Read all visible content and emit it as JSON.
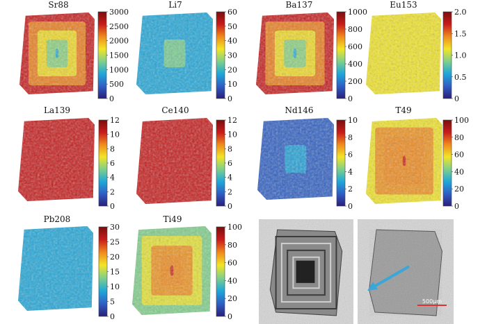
{
  "colormap": [
    "#2b1e7a",
    "#2f5fc4",
    "#1fa7d9",
    "#7fd08a",
    "#f2e526",
    "#f08a1c",
    "#c81b1b",
    "#7a0e0e"
  ],
  "colors": {
    "background": "#ffffff",
    "photo_gray": "#9b9b9b",
    "arrow": "#3aa7d8",
    "scale_bar": "#e03030"
  },
  "panels": [
    {
      "id": "sr88",
      "title": "Sr88",
      "ticks": [
        "3000",
        "2500",
        "2000",
        "1500",
        "1000",
        "500",
        "0"
      ],
      "core_level": 0.35,
      "rim_level": 0.85
    },
    {
      "id": "li7",
      "title": "Li7",
      "ticks": [
        "60",
        "50",
        "40",
        "30",
        "20",
        "10",
        "0"
      ],
      "core_level": 0.38,
      "rim_level": 0.32
    },
    {
      "id": "ba137",
      "title": "Ba137",
      "ticks": [
        "1000",
        "800",
        "600",
        "400",
        "200",
        "0"
      ],
      "core_level": 0.34,
      "rim_level": 0.88
    },
    {
      "id": "eu153",
      "title": "Eu153",
      "ticks": [
        "2.0",
        "1.5",
        "1.0",
        "0.5",
        "0"
      ],
      "core_level": 0.55,
      "rim_level": 0.55
    },
    {
      "id": "la139",
      "title": "La139",
      "ticks": [
        "12",
        "10",
        "8",
        "6",
        "4",
        "2",
        "0"
      ],
      "core_level": 0.9,
      "rim_level": 0.8
    },
    {
      "id": "ce140",
      "title": "Ce140",
      "ticks": [
        "12",
        "10",
        "8",
        "6",
        "4",
        "2",
        "0"
      ],
      "core_level": 0.9,
      "rim_level": 0.85
    },
    {
      "id": "nd146",
      "title": "Nd146",
      "ticks": [
        "10",
        "8",
        "6",
        "4",
        "2",
        "0"
      ],
      "core_level": 0.25,
      "rim_level": 0.15
    },
    {
      "id": "t49",
      "title": "T49",
      "ticks": [
        "100",
        "80",
        "60",
        "40",
        "20",
        "0"
      ],
      "core_level": 0.8,
      "rim_level": 0.6
    },
    {
      "id": "pb208",
      "title": "Pb208",
      "ticks": [
        "30",
        "25",
        "20",
        "15",
        "10",
        "5",
        "0"
      ],
      "core_level": 0.35,
      "rim_level": 0.35
    },
    {
      "id": "ti49",
      "title": "Ti49",
      "ticks": [
        "100",
        "80",
        "60",
        "40",
        "20",
        "0"
      ],
      "core_level": 0.88,
      "rim_level": 0.45
    }
  ],
  "photos": [
    {
      "id": "photo-zoned-crystal"
    },
    {
      "id": "photo-crystal-arrow",
      "scale_label": "500μm"
    }
  ]
}
